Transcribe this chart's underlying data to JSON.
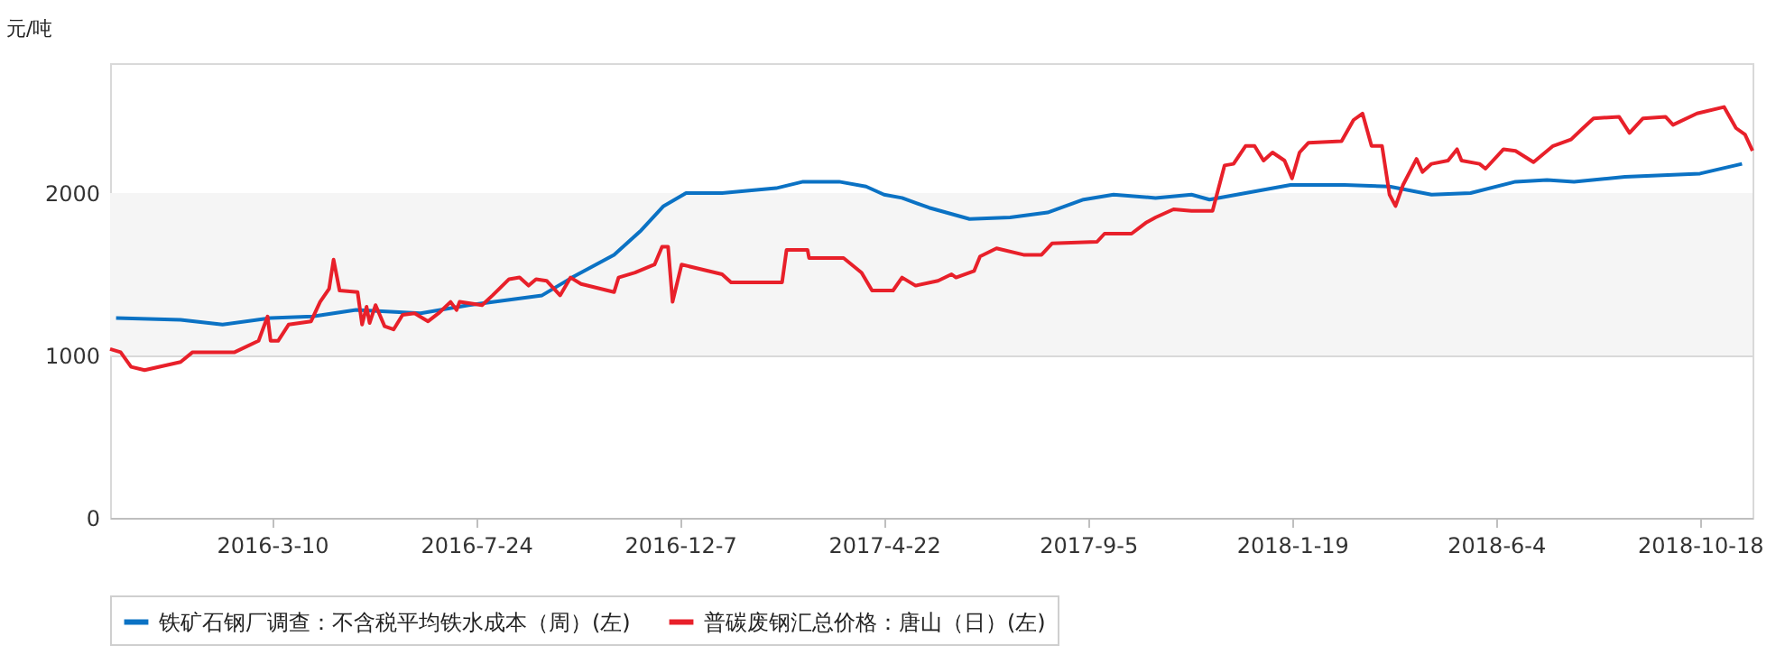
{
  "chart_data": {
    "type": "line",
    "ylabel": "元/吨",
    "xlim": [
      "2015-11-23",
      "2018-11-22"
    ],
    "xticks": [
      {
        "value": "2016-03-10",
        "label": "2016-3-10"
      },
      {
        "value": "2016-07-24",
        "label": "2016-7-24"
      },
      {
        "value": "2016-12-07",
        "label": "2016-12-7"
      },
      {
        "value": "2017-04-22",
        "label": "2017-4-22"
      },
      {
        "value": "2017-09-05",
        "label": "2017-9-5"
      },
      {
        "value": "2018-01-19",
        "label": "2018-1-19"
      },
      {
        "value": "2018-06-04",
        "label": "2018-6-4"
      },
      {
        "value": "2018-10-18",
        "label": "2018-10-18"
      }
    ],
    "ylim": [
      0,
      2800
    ],
    "yticks": [
      0,
      1000,
      2000
    ],
    "grid": "y",
    "legend": "bottom",
    "bands": [
      {
        "axis": "y",
        "from": 1000,
        "to": 2000,
        "color": "#f5f5f5"
      }
    ],
    "series": [
      {
        "name": "铁矿石钢厂调查：不含税平均铁水成本（周）(左)",
        "color": "#0b72c4",
        "x": [
          "2015-11-27",
          "2016-01-09",
          "2016-02-06",
          "2016-03-09",
          "2016-04-06",
          "2016-05-05",
          "2016-06-17",
          "2016-07-19",
          "2016-09-06",
          "2016-09-26",
          "2016-10-24",
          "2016-11-11",
          "2016-11-26",
          "2016-12-11",
          "2017-01-04",
          "2017-02-09",
          "2017-02-27",
          "2017-03-23",
          "2017-04-10",
          "2017-04-22",
          "2017-05-04",
          "2017-05-22",
          "2017-06-18",
          "2017-07-15",
          "2017-08-09",
          "2017-09-02",
          "2017-09-22",
          "2017-10-20",
          "2017-11-13",
          "2017-11-25",
          "2017-12-19",
          "2018-01-18",
          "2018-02-23",
          "2018-03-25",
          "2018-04-22",
          "2018-05-18",
          "2018-06-17",
          "2018-07-08",
          "2018-07-26",
          "2018-08-29",
          "2018-10-18",
          "2018-11-15"
        ],
        "values": [
          1230,
          1220,
          1190,
          1230,
          1240,
          1280,
          1260,
          1310,
          1370,
          1480,
          1620,
          1770,
          1920,
          2000,
          2000,
          2030,
          2070,
          2070,
          2040,
          1990,
          1970,
          1910,
          1840,
          1850,
          1880,
          1960,
          1990,
          1970,
          1990,
          1960,
          2000,
          2050,
          2050,
          2040,
          1990,
          2000,
          2070,
          2080,
          2070,
          2100,
          2120,
          2180
        ]
      },
      {
        "name": "普碳废钢汇总价格：唐山（日）(左)",
        "color": "#e8202a",
        "x": [
          "2015-11-23",
          "2015-11-30",
          "2015-12-07",
          "2015-12-16",
          "2016-01-09",
          "2016-01-17",
          "2016-01-29",
          "2016-02-14",
          "2016-03-01",
          "2016-03-07",
          "2016-03-09",
          "2016-03-14",
          "2016-03-21",
          "2016-04-05",
          "2016-04-11",
          "2016-04-17",
          "2016-04-20",
          "2016-04-24",
          "2016-05-06",
          "2016-05-09",
          "2016-05-12",
          "2016-05-14",
          "2016-05-18",
          "2016-05-24",
          "2016-05-30",
          "2016-06-05",
          "2016-06-13",
          "2016-06-22",
          "2016-06-29",
          "2016-07-07",
          "2016-07-11",
          "2016-07-13",
          "2016-07-28",
          "2016-08-04",
          "2016-08-15",
          "2016-08-22",
          "2016-08-28",
          "2016-09-02",
          "2016-09-09",
          "2016-09-18",
          "2016-09-25",
          "2016-10-02",
          "2016-10-24",
          "2016-10-27",
          "2016-11-07",
          "2016-11-20",
          "2016-11-25",
          "2016-11-29",
          "2016-12-02",
          "2016-12-08",
          "2017-01-04",
          "2017-01-10",
          "2017-02-13",
          "2017-02-16",
          "2017-03-02",
          "2017-03-03",
          "2017-03-26",
          "2017-04-07",
          "2017-04-14",
          "2017-04-28",
          "2017-05-04",
          "2017-05-13",
          "2017-05-28",
          "2017-06-06",
          "2017-06-09",
          "2017-06-21",
          "2017-06-25",
          "2017-07-06",
          "2017-07-24",
          "2017-08-05",
          "2017-08-12",
          "2017-09-11",
          "2017-09-16",
          "2017-10-04",
          "2017-10-14",
          "2017-10-20",
          "2017-11-01",
          "2017-11-13",
          "2017-11-27",
          "2017-12-05",
          "2017-12-11",
          "2017-12-19",
          "2017-12-25",
          "2017-12-31",
          "2018-01-06",
          "2018-01-14",
          "2018-01-19",
          "2018-01-24",
          "2018-01-30",
          "2018-02-21",
          "2018-03-01",
          "2018-03-07",
          "2018-03-13",
          "2018-03-20",
          "2018-03-25",
          "2018-03-29",
          "2018-04-03",
          "2018-04-12",
          "2018-04-16",
          "2018-04-22",
          "2018-05-03",
          "2018-05-09",
          "2018-05-12",
          "2018-05-24",
          "2018-05-28",
          "2018-06-09",
          "2018-06-17",
          "2018-06-29",
          "2018-07-12",
          "2018-07-24",
          "2018-08-01",
          "2018-08-08",
          "2018-08-25",
          "2018-09-01",
          "2018-09-10",
          "2018-09-25",
          "2018-09-30",
          "2018-10-16",
          "2018-11-03",
          "2018-11-11",
          "2018-11-17",
          "2018-11-22"
        ],
        "values": [
          1040,
          1020,
          930,
          910,
          960,
          1020,
          1020,
          1020,
          1090,
          1240,
          1090,
          1090,
          1190,
          1210,
          1330,
          1410,
          1590,
          1400,
          1390,
          1190,
          1300,
          1200,
          1310,
          1180,
          1160,
          1250,
          1260,
          1210,
          1260,
          1330,
          1280,
          1330,
          1310,
          1370,
          1470,
          1480,
          1430,
          1470,
          1460,
          1370,
          1480,
          1440,
          1390,
          1480,
          1510,
          1560,
          1670,
          1670,
          1330,
          1560,
          1500,
          1450,
          1450,
          1650,
          1650,
          1600,
          1600,
          1510,
          1400,
          1400,
          1480,
          1430,
          1460,
          1500,
          1480,
          1520,
          1610,
          1660,
          1620,
          1620,
          1690,
          1700,
          1750,
          1750,
          1820,
          1850,
          1900,
          1890,
          1890,
          2170,
          2180,
          2290,
          2290,
          2200,
          2250,
          2200,
          2090,
          2250,
          2310,
          2320,
          2450,
          2490,
          2290,
          2290,
          1990,
          1920,
          2050,
          2210,
          2130,
          2180,
          2200,
          2270,
          2200,
          2180,
          2150,
          2270,
          2260,
          2190,
          2290,
          2330,
          2400,
          2460,
          2470,
          2370,
          2460,
          2470,
          2420,
          2490,
          2530,
          2400,
          2360,
          2260
        ]
      }
    ]
  }
}
